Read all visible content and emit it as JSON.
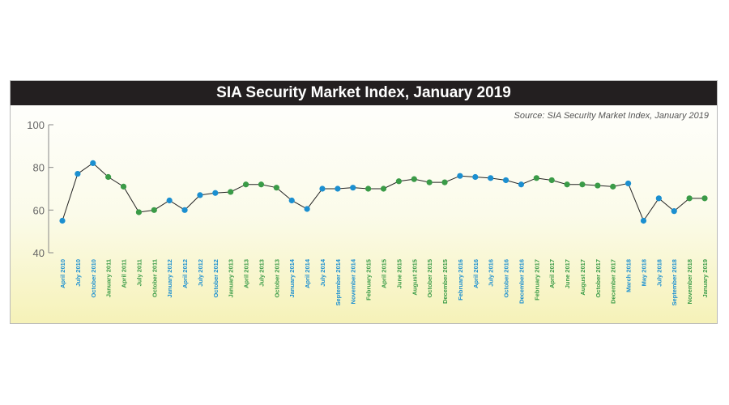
{
  "title": "SIA Security Market Index, January 2019",
  "source": "Source: SIA Security Market Index, January 2019",
  "colors": {
    "blue": "#1b8fd0",
    "green": "#3a9b47",
    "line": "#222222",
    "axis": "#888888",
    "tick_text": "#666666"
  },
  "chart_data": {
    "type": "line",
    "title": "SIA Security Market Index, January 2019",
    "xlabel": "",
    "ylabel": "",
    "ylim": [
      40,
      100
    ],
    "yticks": [
      40,
      60,
      80,
      100
    ],
    "grid": false,
    "categories": [
      "April 2010",
      "July 2010",
      "October 2010",
      "January 2011",
      "April 2011",
      "July 2011",
      "October 2011",
      "January 2012",
      "April 2012",
      "July 2012",
      "October 2012",
      "January 2013",
      "April 2013",
      "July 2013",
      "October 2013",
      "January 2014",
      "April 2014",
      "July 2014",
      "September 2014",
      "November 2014",
      "February 2015",
      "April 2015",
      "June 2015",
      "August 2015",
      "October 2015",
      "December 2015",
      "February 2016",
      "April 2016",
      "July 2016",
      "October 2016",
      "December 2016",
      "February 2017",
      "April 2017",
      "June 2017",
      "August 2017",
      "October 2017",
      "December 2017",
      "March 2018",
      "May 2018",
      "July 2018",
      "September 2018",
      "November 2018",
      "January 2019"
    ],
    "values": [
      55,
      77,
      82,
      75.5,
      71,
      59,
      60,
      64.5,
      60,
      67,
      68,
      68.5,
      72,
      72,
      70.5,
      64.5,
      60.5,
      70,
      70,
      70.5,
      70,
      70,
      73.5,
      74.5,
      73,
      73,
      76,
      75.5,
      75,
      74,
      72,
      75,
      74,
      72,
      72,
      71.5,
      71,
      72.5,
      55,
      65.5,
      59.5,
      65.5,
      65.5
    ],
    "point_colors": [
      "blue",
      "blue",
      "blue",
      "green",
      "green",
      "green",
      "green",
      "blue",
      "blue",
      "blue",
      "blue",
      "green",
      "green",
      "green",
      "green",
      "blue",
      "blue",
      "blue",
      "blue",
      "blue",
      "green",
      "green",
      "green",
      "green",
      "green",
      "green",
      "blue",
      "blue",
      "blue",
      "blue",
      "blue",
      "green",
      "green",
      "green",
      "green",
      "green",
      "green",
      "blue",
      "blue",
      "blue",
      "blue",
      "green",
      "green"
    ]
  }
}
